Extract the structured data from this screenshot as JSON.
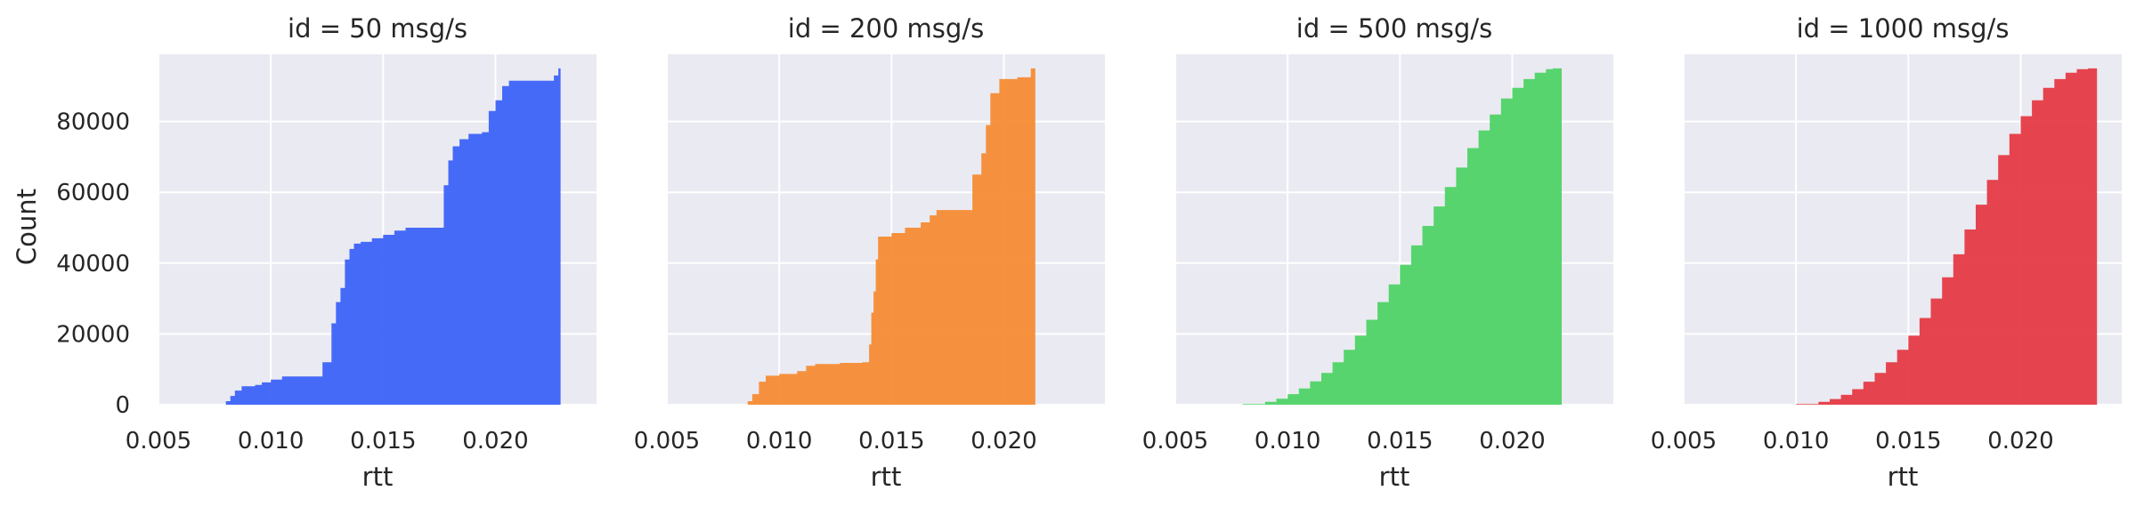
{
  "chart_data": {
    "type": "histogram-cumulative",
    "shared_ylabel": "Count",
    "xlabel": "rtt",
    "xlim": [
      0.005,
      0.0245
    ],
    "ylim": [
      0,
      99000
    ],
    "xticks": [
      "0.005",
      "0.010",
      "0.015",
      "0.020"
    ],
    "xtick_values": [
      0.005,
      0.01,
      0.015,
      0.02
    ],
    "yticks": [
      "0",
      "20000",
      "40000",
      "60000",
      "80000"
    ],
    "ytick_values": [
      0,
      20000,
      40000,
      60000,
      80000
    ],
    "grid": true,
    "background": "#eaeaf2",
    "panels": [
      {
        "title": "id = 50 msg/s",
        "color": "#3d63f8",
        "points": [
          [
            0.008,
            1000
          ],
          [
            0.0082,
            2500
          ],
          [
            0.0084,
            4000
          ],
          [
            0.0087,
            5200
          ],
          [
            0.0093,
            5600
          ],
          [
            0.0096,
            6300
          ],
          [
            0.01,
            7100
          ],
          [
            0.0105,
            8000
          ],
          [
            0.0123,
            12000
          ],
          [
            0.0127,
            23000
          ],
          [
            0.0129,
            29000
          ],
          [
            0.0131,
            33000
          ],
          [
            0.0133,
            41000
          ],
          [
            0.0135,
            44000
          ],
          [
            0.0137,
            45500
          ],
          [
            0.014,
            46000
          ],
          [
            0.0145,
            47000
          ],
          [
            0.015,
            48000
          ],
          [
            0.0155,
            49200
          ],
          [
            0.016,
            50000
          ],
          [
            0.0176,
            50000
          ],
          [
            0.0177,
            62000
          ],
          [
            0.0179,
            69000
          ],
          [
            0.0181,
            73000
          ],
          [
            0.0184,
            75000
          ],
          [
            0.0188,
            76500
          ],
          [
            0.0194,
            77000
          ],
          [
            0.0197,
            83000
          ],
          [
            0.02,
            86000
          ],
          [
            0.0203,
            90000
          ],
          [
            0.0206,
            91500
          ],
          [
            0.0214,
            91500
          ],
          [
            0.0226,
            93000
          ],
          [
            0.0228,
            95000
          ]
        ],
        "xmax": 0.0229
      },
      {
        "title": "id = 200 msg/s",
        "color": "#f68c34",
        "points": [
          [
            0.0086,
            1000
          ],
          [
            0.0088,
            3000
          ],
          [
            0.0091,
            6500
          ],
          [
            0.0094,
            8200
          ],
          [
            0.01,
            8700
          ],
          [
            0.0108,
            9500
          ],
          [
            0.0112,
            11000
          ],
          [
            0.0116,
            11500
          ],
          [
            0.0127,
            11800
          ],
          [
            0.0137,
            12000
          ],
          [
            0.014,
            17000
          ],
          [
            0.0141,
            26000
          ],
          [
            0.0142,
            32000
          ],
          [
            0.0143,
            41000
          ],
          [
            0.0144,
            47500
          ],
          [
            0.015,
            48500
          ],
          [
            0.0156,
            50000
          ],
          [
            0.0163,
            51500
          ],
          [
            0.0167,
            53500
          ],
          [
            0.017,
            55000
          ],
          [
            0.0182,
            55000
          ],
          [
            0.0186,
            65000
          ],
          [
            0.019,
            71000
          ],
          [
            0.0192,
            79000
          ],
          [
            0.0194,
            88000
          ],
          [
            0.0198,
            92000
          ],
          [
            0.0206,
            92500
          ],
          [
            0.0212,
            95000
          ]
        ],
        "xmax": 0.0214
      },
      {
        "title": "id = 500 msg/s",
        "color": "#4fd366",
        "points": [
          [
            0.008,
            200
          ],
          [
            0.009,
            800
          ],
          [
            0.0095,
            1700
          ],
          [
            0.01,
            3000
          ],
          [
            0.0105,
            4600
          ],
          [
            0.011,
            6600
          ],
          [
            0.0115,
            9000
          ],
          [
            0.012,
            12000
          ],
          [
            0.0125,
            15500
          ],
          [
            0.013,
            19500
          ],
          [
            0.0135,
            24000
          ],
          [
            0.014,
            29000
          ],
          [
            0.0145,
            34000
          ],
          [
            0.015,
            39500
          ],
          [
            0.0155,
            45000
          ],
          [
            0.016,
            50500
          ],
          [
            0.0165,
            56000
          ],
          [
            0.017,
            61500
          ],
          [
            0.0175,
            67000
          ],
          [
            0.018,
            72500
          ],
          [
            0.0185,
            77500
          ],
          [
            0.019,
            82000
          ],
          [
            0.0195,
            86500
          ],
          [
            0.02,
            89500
          ],
          [
            0.0205,
            92000
          ],
          [
            0.021,
            93800
          ],
          [
            0.0215,
            94800
          ],
          [
            0.0218,
            95000
          ]
        ],
        "xmax": 0.0222
      },
      {
        "title": "id = 1000 msg/s",
        "color": "#e53b45",
        "points": [
          [
            0.01,
            200
          ],
          [
            0.011,
            800
          ],
          [
            0.0115,
            1600
          ],
          [
            0.012,
            2800
          ],
          [
            0.0125,
            4400
          ],
          [
            0.013,
            6500
          ],
          [
            0.0135,
            9000
          ],
          [
            0.014,
            12000
          ],
          [
            0.0145,
            15500
          ],
          [
            0.015,
            19500
          ],
          [
            0.0155,
            24500
          ],
          [
            0.016,
            30000
          ],
          [
            0.0165,
            36000
          ],
          [
            0.017,
            42500
          ],
          [
            0.0175,
            49500
          ],
          [
            0.018,
            56500
          ],
          [
            0.0185,
            63500
          ],
          [
            0.019,
            70500
          ],
          [
            0.0195,
            76500
          ],
          [
            0.02,
            81500
          ],
          [
            0.0205,
            86000
          ],
          [
            0.021,
            89500
          ],
          [
            0.0215,
            92000
          ],
          [
            0.022,
            93800
          ],
          [
            0.0225,
            94800
          ],
          [
            0.023,
            95000
          ]
        ],
        "xmax": 0.0234
      }
    ]
  }
}
